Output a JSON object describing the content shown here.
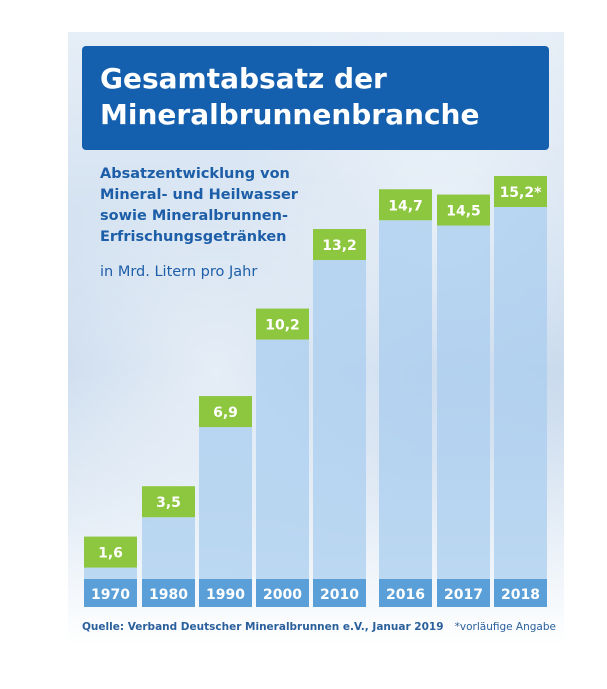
{
  "title": {
    "line1": "Gesamtabsatz der",
    "line2": "Mineralbrunnenbranche"
  },
  "subtitle": {
    "line1": "Absatzentwicklung von",
    "line2": "Mineral- und Heilwasser",
    "line3": "sowie Mineralbrunnen-",
    "line4": "Erfrischungsgetränken"
  },
  "unit_label": "in Mrd. Litern pro Jahr",
  "colors": {
    "title_bg": "#1560ae",
    "bar": "#a9cdef",
    "value_box": "#8dc63f",
    "year_box": "#5b9fd8",
    "text_blue": "#1d5ea8"
  },
  "chart_data": {
    "type": "bar",
    "categories": [
      "1970",
      "1980",
      "1990",
      "2000",
      "2010",
      "2016",
      "2017",
      "2018"
    ],
    "values": [
      1.6,
      3.5,
      6.9,
      10.2,
      13.2,
      14.7,
      14.5,
      15.2
    ],
    "value_labels": [
      "1,6",
      "3,5",
      "6,9",
      "10,2",
      "13,2",
      "14,7",
      "14,5",
      "15,2*"
    ],
    "title": "Gesamtabsatz der Mineralbrunnenbranche",
    "subtitle": "Absatzentwicklung von Mineral- und Heilwasser sowie Mineralbrunnen-Erfrischungsgetränken",
    "ylabel": "in Mrd. Litern pro Jahr",
    "xlabel": "",
    "ylim": [
      0,
      16
    ],
    "grid": false,
    "legend": "none"
  },
  "source": "Quelle: Verband Deutscher Mineralbrunnen e.V., Januar 2019",
  "footnote": "*vorläufige Angabe"
}
